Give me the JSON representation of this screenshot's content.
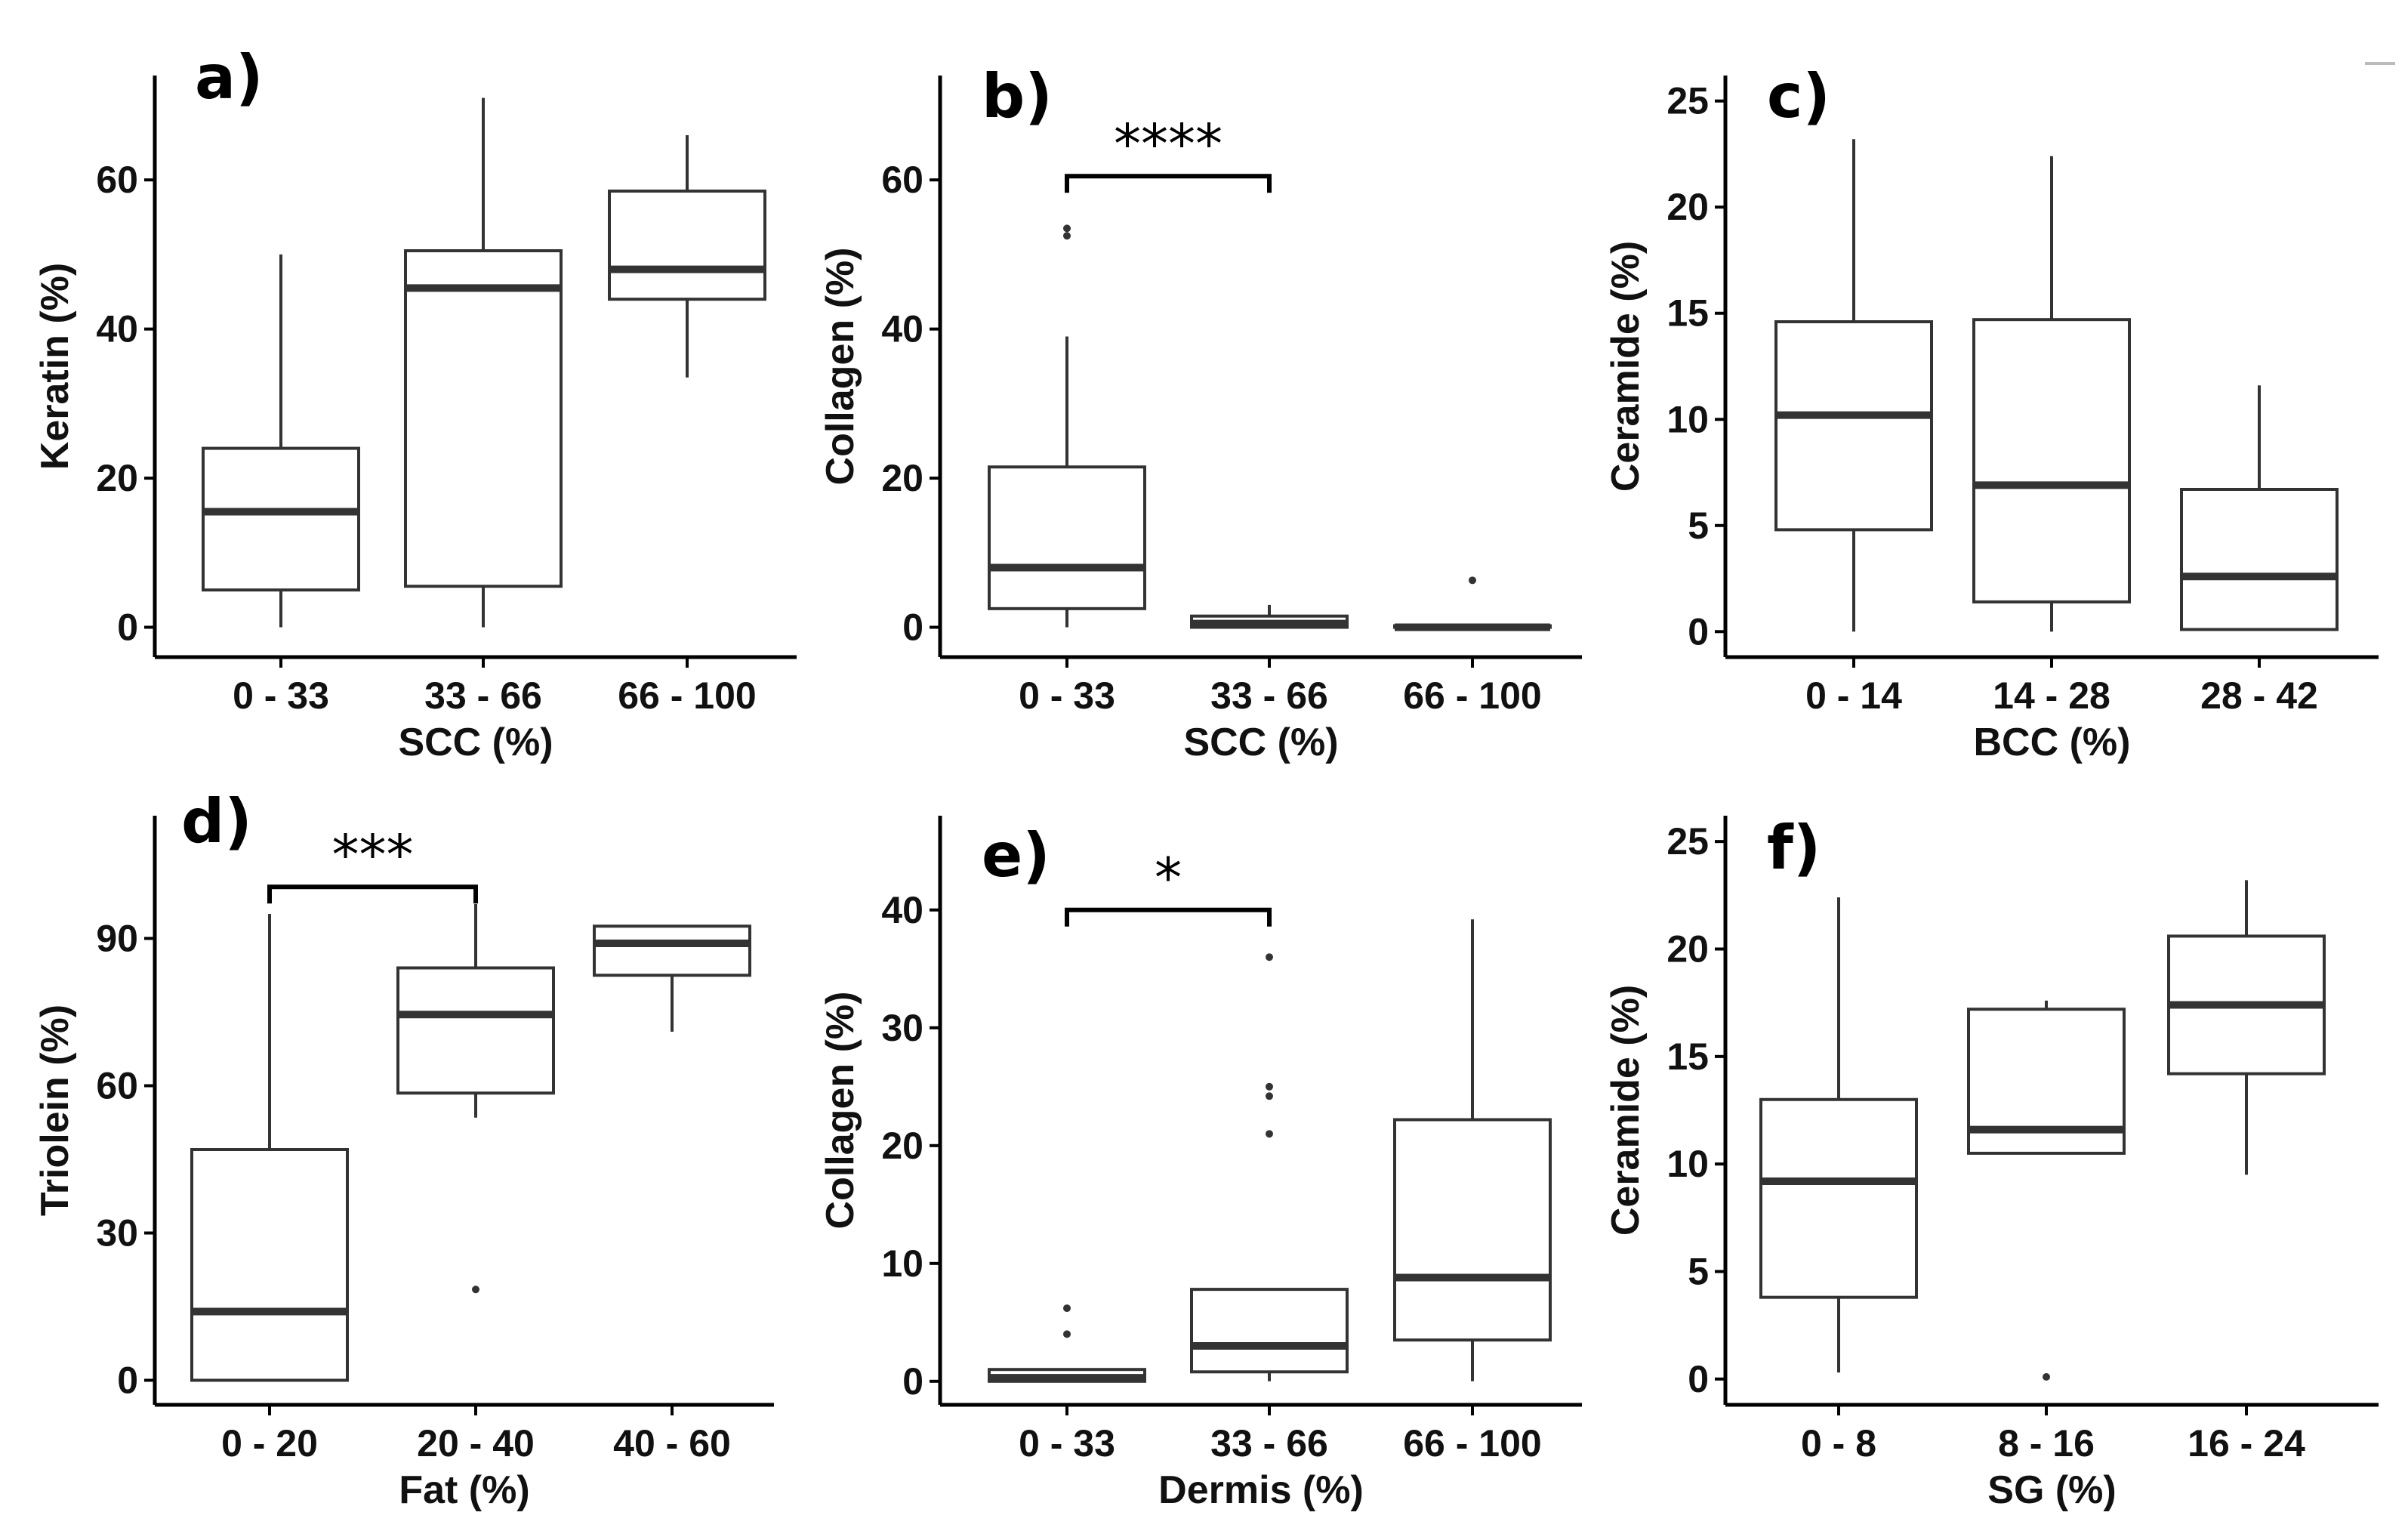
{
  "chart_data": [
    {
      "type": "box",
      "label": "a)",
      "xlabel": "SCC (%)",
      "ylabel": "Keratin (%)",
      "ylim": [
        -4,
        74
      ],
      "yticks": [
        0,
        20,
        40,
        60
      ],
      "yticklabels": [
        "0",
        "20",
        "40",
        "60"
      ],
      "categories": [
        "0 - 33",
        "33 - 66",
        "66 - 100"
      ],
      "boxes": [
        {
          "min": 0,
          "q1": 5,
          "median": 15.5,
          "q3": 24,
          "max": 50,
          "outliers": []
        },
        {
          "min": 0,
          "q1": 5.5,
          "median": 45.5,
          "q3": 50.5,
          "max": 71,
          "outliers": []
        },
        {
          "min": 33.5,
          "q1": 44,
          "median": 48,
          "q3": 58.5,
          "max": 66,
          "outliers": []
        }
      ],
      "significance": []
    },
    {
      "type": "box",
      "label": "b)",
      "xlabel": "SCC (%)",
      "ylabel": "Collagen (%)",
      "ylim": [
        -4,
        74
      ],
      "yticks": [
        0,
        20,
        40,
        60
      ],
      "yticklabels": [
        "0",
        "20",
        "40",
        "60"
      ],
      "categories": [
        "0 - 33",
        "33 - 66",
        "66 - 100"
      ],
      "boxes": [
        {
          "min": 0,
          "q1": 2.5,
          "median": 8,
          "q3": 21.5,
          "max": 39,
          "outliers": [
            52.5,
            53.5
          ]
        },
        {
          "min": 0,
          "q1": 0,
          "median": 0.5,
          "q3": 1.5,
          "max": 3,
          "outliers": []
        },
        {
          "min": 0,
          "q1": 0,
          "median": 0,
          "q3": 0.2,
          "max": 0.3,
          "outliers": [
            6.3
          ]
        }
      ],
      "significance": [
        {
          "from": 0,
          "to": 1,
          "y": 60.5,
          "label": "****"
        }
      ]
    },
    {
      "type": "box",
      "label": "c)",
      "xlabel": "BCC (%)",
      "ylabel": "Ceramide (%)",
      "ylim": [
        -1.2,
        26.2
      ],
      "yticks": [
        0,
        5,
        10,
        15,
        20,
        25
      ],
      "yticklabels": [
        "0",
        "5",
        "10",
        "15",
        "20",
        "25"
      ],
      "categories": [
        "0 - 14",
        "14 - 28",
        "28 - 42"
      ],
      "boxes": [
        {
          "min": 0,
          "q1": 4.8,
          "median": 10.2,
          "q3": 14.6,
          "max": 23.2,
          "outliers": []
        },
        {
          "min": 0,
          "q1": 1.4,
          "median": 6.9,
          "q3": 14.7,
          "max": 22.4,
          "outliers": []
        },
        {
          "min": 0.1,
          "q1": 0.1,
          "median": 2.6,
          "q3": 6.7,
          "max": 11.6,
          "outliers": []
        }
      ],
      "significance": []
    },
    {
      "type": "box",
      "label": "d)",
      "xlabel": "Fat (%)",
      "ylabel": "Triolein (%)",
      "ylim": [
        -5,
        115
      ],
      "yticks": [
        0,
        30,
        60,
        90
      ],
      "yticklabels": [
        "0",
        "30",
        "60",
        "90"
      ],
      "categories": [
        "0 - 20",
        "20 - 40",
        "40 - 60"
      ],
      "boxes": [
        {
          "min": 0,
          "q1": 0,
          "median": 14,
          "q3": 47,
          "max": 95,
          "outliers": []
        },
        {
          "min": 53.5,
          "q1": 58.5,
          "median": 74.5,
          "q3": 84,
          "max": 97,
          "outliers": [
            18.5
          ]
        },
        {
          "min": 71,
          "q1": 82.5,
          "median": 89,
          "q3": 92.5,
          "max": 92.5,
          "outliers": []
        }
      ],
      "significance": [
        {
          "from": 0,
          "to": 1,
          "y": 100.5,
          "label": "***"
        }
      ]
    },
    {
      "type": "box",
      "label": "e)",
      "xlabel": "Dermis (%)",
      "ylabel": "Collagen (%)",
      "ylim": [
        -2,
        48
      ],
      "yticks": [
        0,
        10,
        20,
        30,
        40
      ],
      "yticklabels": [
        "0",
        "10",
        "20",
        "30",
        "40"
      ],
      "categories": [
        "0 - 33",
        "33 - 66",
        "66 - 100"
      ],
      "boxes": [
        {
          "min": 0,
          "q1": 0,
          "median": 0.3,
          "q3": 1,
          "max": 1,
          "outliers": [
            4,
            6.2
          ]
        },
        {
          "min": 0,
          "q1": 0.8,
          "median": 3,
          "q3": 7.8,
          "max": 7.8,
          "outliers": [
            21,
            24.2,
            25,
            36
          ]
        },
        {
          "min": 0,
          "q1": 3.5,
          "median": 8.8,
          "q3": 22.2,
          "max": 39.2,
          "outliers": []
        }
      ],
      "significance": [
        {
          "from": 0,
          "to": 1,
          "y": 40,
          "label": "*"
        }
      ]
    },
    {
      "type": "box",
      "label": "f)",
      "xlabel": "SG (%)",
      "ylabel": "Ceramide (%)",
      "ylim": [
        -1.2,
        26.2
      ],
      "yticks": [
        0,
        5,
        10,
        15,
        20,
        25
      ],
      "yticklabels": [
        "0",
        "5",
        "10",
        "15",
        "20",
        "25"
      ],
      "categories": [
        "0 - 8",
        "8 - 16",
        "16 - 24"
      ],
      "boxes": [
        {
          "min": 0.3,
          "q1": 3.8,
          "median": 9.2,
          "q3": 13,
          "max": 22.4,
          "outliers": []
        },
        {
          "min": 10.5,
          "q1": 10.5,
          "median": 11.6,
          "q3": 17.2,
          "max": 17.6,
          "outliers": [
            0.1
          ]
        },
        {
          "min": 9.5,
          "q1": 14.2,
          "median": 17.4,
          "q3": 20.6,
          "max": 23.2,
          "outliers": []
        }
      ],
      "significance": []
    }
  ]
}
